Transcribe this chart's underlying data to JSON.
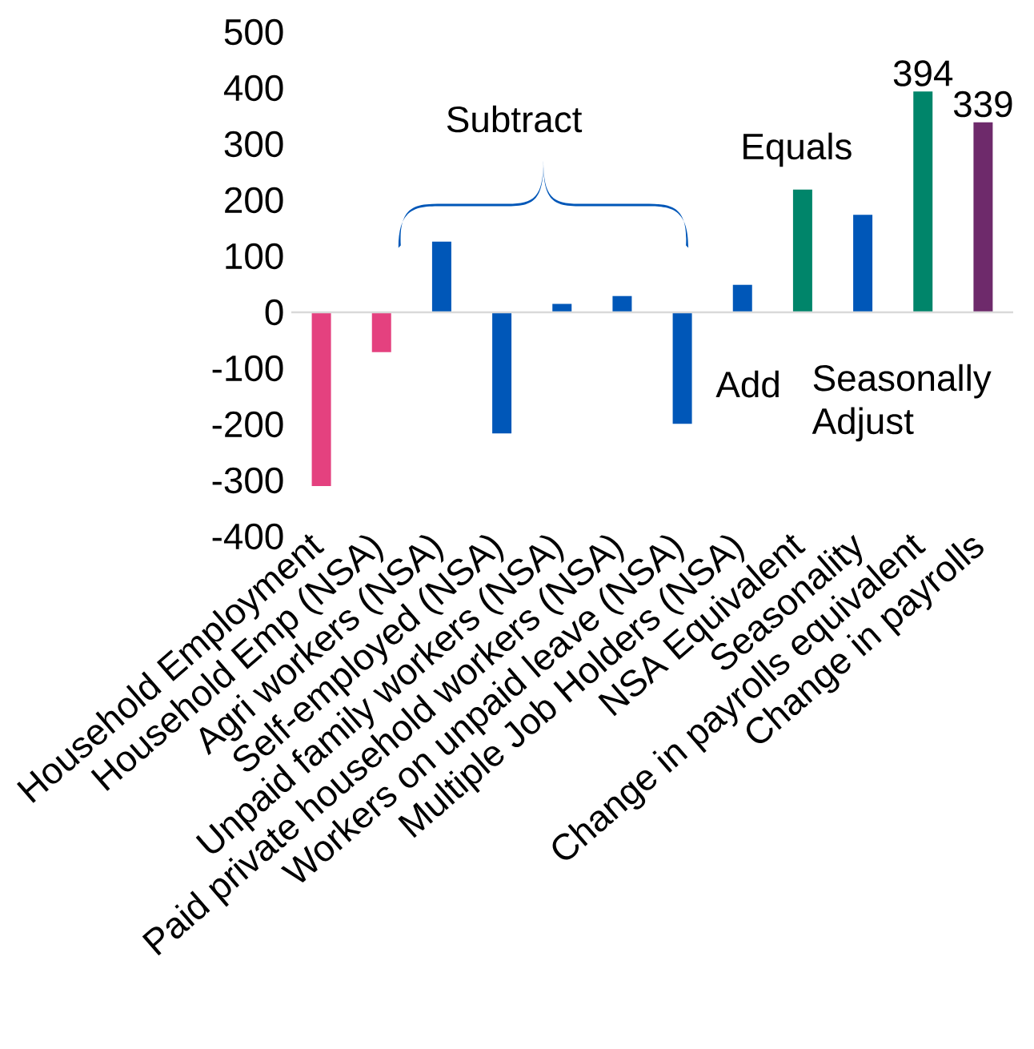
{
  "chart_data": {
    "type": "bar",
    "categories": [
      "Household Employment",
      "Household Emp (NSA)",
      "Agri workers (NSA)",
      "Self-employed (NSA)",
      "Unpaid family workers (NSA)",
      "Paid private household workers (NSA)",
      "Workers on unpaid leave (NSA)",
      "Multiple Job Holders (NSA)",
      "NSA Equivalent",
      "Seasonality",
      "Change in payrolls equivalent",
      "Change in payrolls"
    ],
    "values": [
      -310,
      -71,
      126,
      -216,
      15,
      29,
      -199,
      49,
      219,
      174,
      394,
      339
    ],
    "colors": [
      "#e4417f",
      "#e4417f",
      "#0057b8",
      "#0057b8",
      "#0057b8",
      "#0057b8",
      "#0057b8",
      "#0057b8",
      "#00856a",
      "#0057b8",
      "#00856a",
      "#6e2a6b"
    ],
    "value_labels": [
      null,
      null,
      null,
      null,
      null,
      null,
      null,
      null,
      null,
      null,
      "394",
      "339"
    ],
    "ylim": [
      -400,
      500
    ],
    "yticks": [
      -400,
      -300,
      -200,
      -100,
      0,
      100,
      200,
      300,
      400,
      500
    ],
    "annotations": [
      "Subtract",
      "Equals",
      "Add",
      "Seasonally Adjust"
    ],
    "ref_lines": [
      {
        "axis": "y",
        "value": 0,
        "color": "#d9d9d9"
      }
    ],
    "grid": false
  }
}
